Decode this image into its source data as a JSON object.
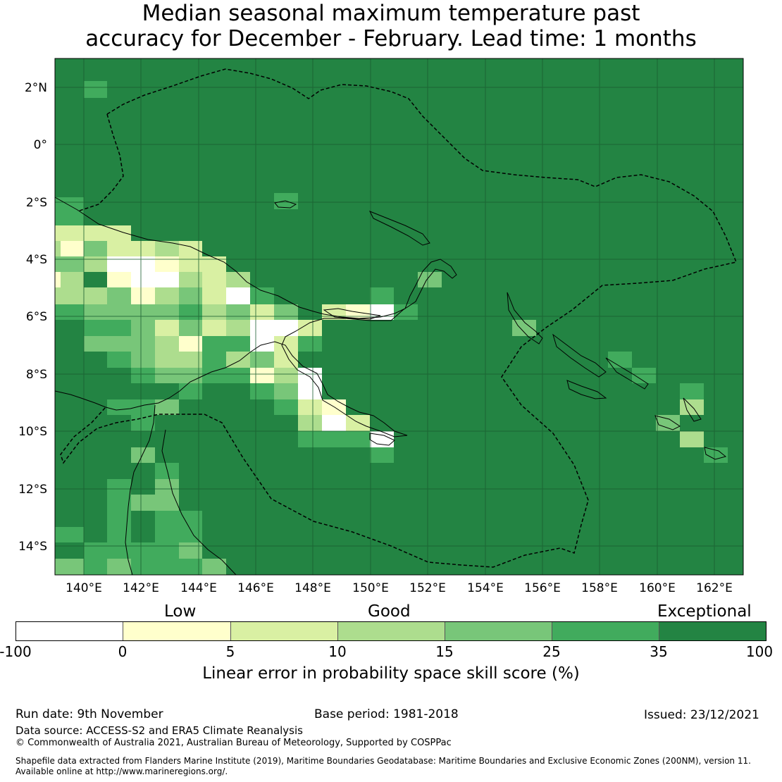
{
  "title_line1": "Median seasonal maximum temperature past",
  "title_line2": "accuracy for December - February. Lead time: 1 months",
  "map": {
    "lon_range": [
      139,
      163
    ],
    "lat_range": [
      -15,
      3
    ],
    "lon_ticks": [
      "140°E",
      "142°E",
      "144°E",
      "146°E",
      "148°E",
      "150°E",
      "152°E",
      "154°E",
      "156°E",
      "158°E",
      "160°E",
      "162°E"
    ],
    "lat_ticks": [
      "2°N",
      "0°",
      "2°S",
      "4°S",
      "6°S",
      "8°S",
      "10°S",
      "12°S",
      "14°S"
    ],
    "background_color": "#238443"
  },
  "colorbar": {
    "category_labels": [
      "Low",
      "Good",
      "Exceptional"
    ],
    "ticks": [
      "-100",
      "0",
      "5",
      "10",
      "15",
      "25",
      "35",
      "100"
    ],
    "colors": [
      "#ffffff",
      "#ffffcc",
      "#d9f0a3",
      "#addd8e",
      "#78c679",
      "#41ab5d",
      "#238443"
    ],
    "label": "Linear error in probability space skill score (%)"
  },
  "footer": {
    "run_date": "Run date: 9th November",
    "base_period": "Base period: 1981-2018",
    "issued": "Issued: 23/12/2021",
    "data_source": "Data source: ACCESS-S2 and ERA5 Climate Reanalysis",
    "copyright": "© Commonwealth of Australia 2021, Australian Bureau of Meteorology, Supported by COSPPac",
    "shapefile_line1": "Shapefile data extracted from Flanders Marine Institute (2019), Maritime Boundaries Geodatabase: Maritime Boundaries and Exclusive Economic Zones (200NM), version 11.",
    "shapefile_line2": "Available online at http://www.marineregions.org/."
  }
}
